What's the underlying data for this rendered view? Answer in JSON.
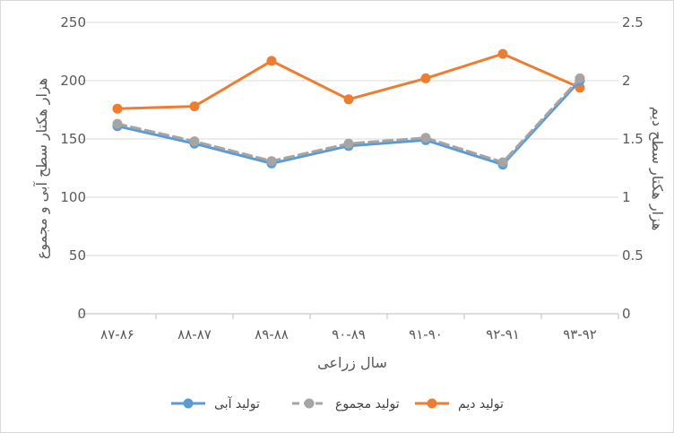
{
  "chart_data": {
    "type": "line",
    "title": "",
    "categories": [
      "۸۷-۸۶",
      "۸۸-۸۷",
      "۸۹-۸۸",
      "۹۰-۸۹",
      "۹۱-۹۰",
      "۹۲-۹۱",
      "۹۳-۹۲"
    ],
    "xlabel": "سال زراعی",
    "ylabel_left": "هزار هکتار سطح آبی و مجموع",
    "ylabel_right": "هزار هکتار سطح دیم",
    "ylim_left": [
      0,
      250
    ],
    "ylim_right": [
      0,
      2.5
    ],
    "yticks_left": [
      "0",
      "50",
      "100",
      "150",
      "200",
      "250"
    ],
    "yticks_right": [
      "0",
      "0.5",
      "1",
      "1.5",
      "2",
      "2.5"
    ],
    "grid": true,
    "legend_position": "bottom",
    "series": [
      {
        "name": "تولید آبی",
        "axis": "left",
        "color": "#5b9bd5",
        "dashed": false,
        "values": [
          161,
          146,
          129,
          144,
          149,
          128,
          200
        ]
      },
      {
        "name": "تولید مجموع",
        "axis": "left",
        "color": "#a5a5a5",
        "dashed": true,
        "values": [
          163,
          148,
          131,
          146,
          151,
          130,
          202
        ]
      },
      {
        "name": "تولید دیم",
        "axis": "right",
        "color": "#ed7d31",
        "dashed": false,
        "values": [
          1.76,
          1.78,
          2.17,
          1.84,
          2.02,
          2.23,
          1.94
        ]
      }
    ],
    "legend_order": [
      2,
      1,
      0
    ]
  }
}
